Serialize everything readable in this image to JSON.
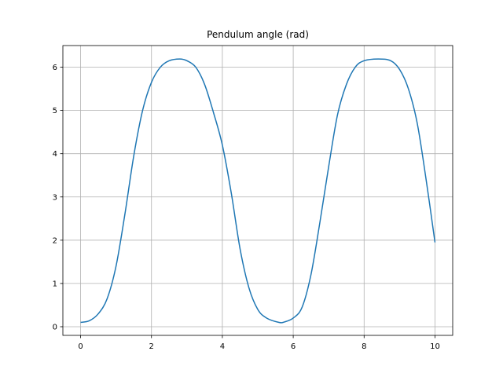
{
  "chart_data": {
    "type": "line",
    "title": "Pendulum angle (rad)",
    "xlabel": "",
    "ylabel": "",
    "xlim": [
      -0.5,
      10.5
    ],
    "ylim": [
      -0.2,
      6.5
    ],
    "xticks": [
      0,
      2,
      4,
      6,
      8,
      10
    ],
    "yticks": [
      0,
      1,
      2,
      3,
      4,
      5,
      6
    ],
    "xtick_labels": [
      "0",
      "2",
      "4",
      "6",
      "8",
      "10"
    ],
    "ytick_labels": [
      "0",
      "1",
      "2",
      "3",
      "4",
      "5",
      "6"
    ],
    "grid": true,
    "legend": "none",
    "line_color": "#1f77b4",
    "grid_color": "#b0b0b0",
    "series": [
      {
        "x": [
          0,
          0.25,
          0.5,
          0.75,
          1.0,
          1.25,
          1.5,
          1.75,
          2.0,
          2.25,
          2.5,
          2.8,
          3.0,
          3.25,
          3.5,
          3.75,
          4.0,
          4.25,
          4.5,
          4.75,
          5.0,
          5.25,
          5.6,
          5.75,
          6.0,
          6.25,
          6.5,
          6.75,
          7.0,
          7.25,
          7.5,
          7.75,
          8.0,
          8.4,
          8.75,
          9.0,
          9.25,
          9.5,
          9.75,
          10.0
        ],
        "y": [
          0.1,
          0.14,
          0.3,
          0.65,
          1.4,
          2.6,
          3.95,
          5.0,
          5.65,
          6.0,
          6.15,
          6.19,
          6.15,
          6.0,
          5.6,
          4.95,
          4.2,
          3.1,
          1.8,
          0.9,
          0.4,
          0.2,
          0.1,
          0.11,
          0.2,
          0.45,
          1.2,
          2.4,
          3.7,
          4.9,
          5.6,
          6.0,
          6.15,
          6.19,
          6.15,
          5.95,
          5.5,
          4.7,
          3.4,
          1.95
        ]
      }
    ]
  }
}
